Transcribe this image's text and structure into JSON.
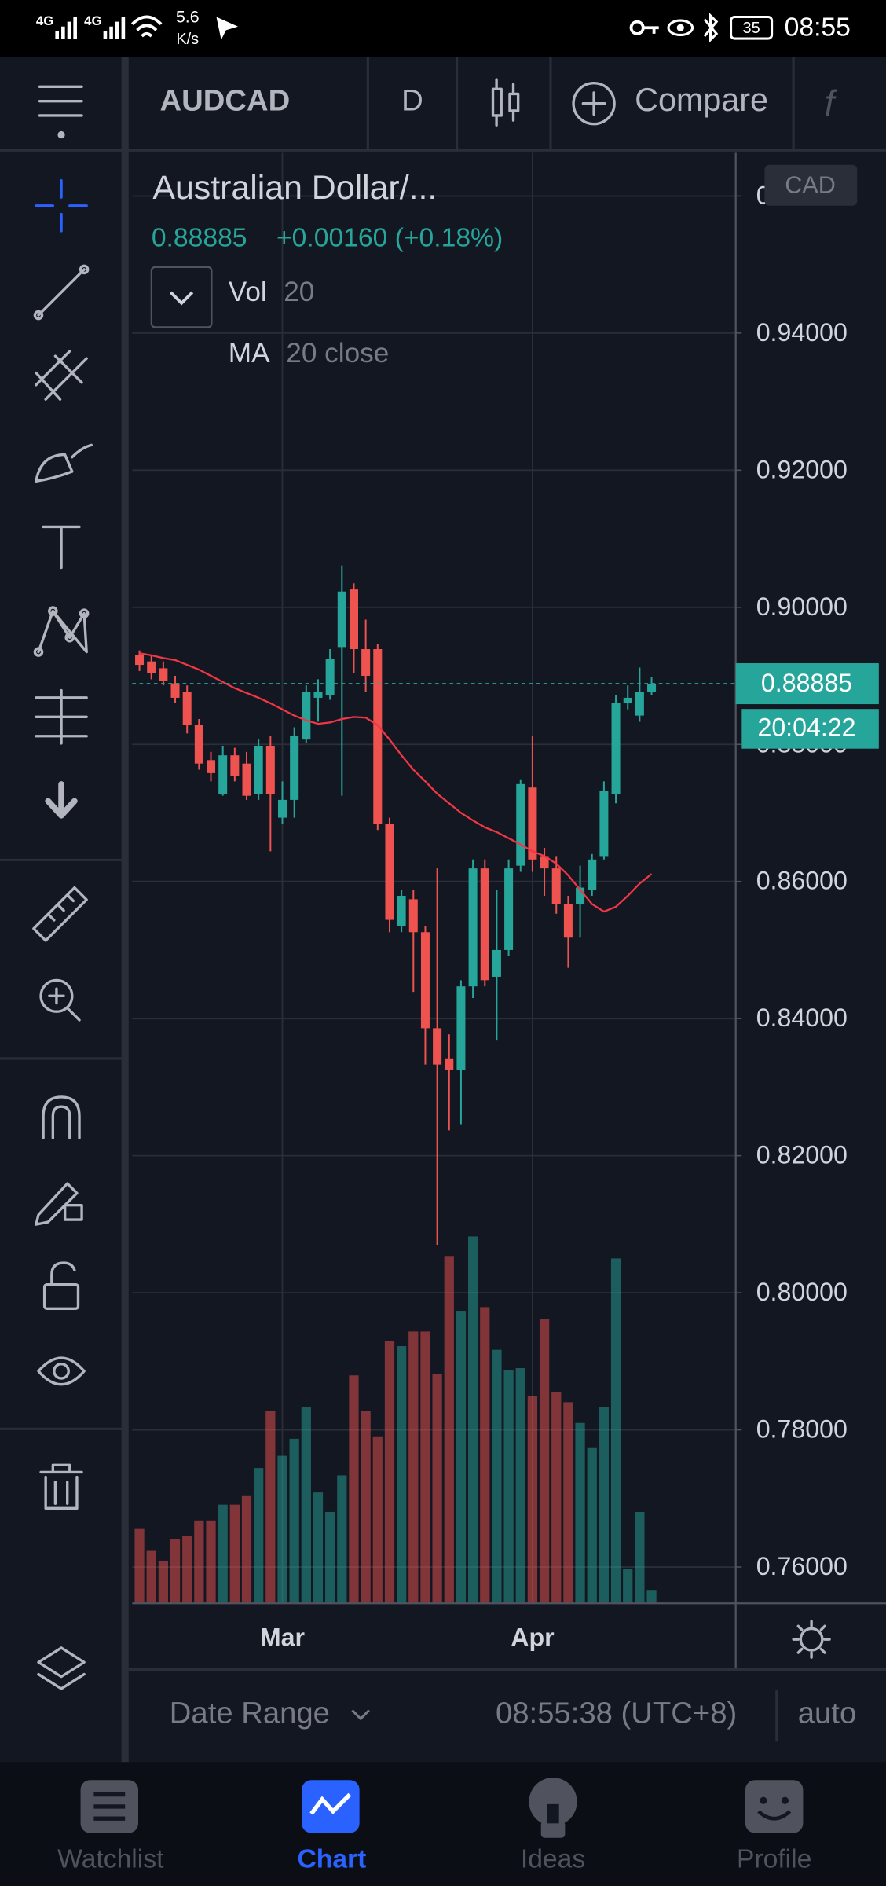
{
  "status_bar": {
    "network": "4G",
    "speed": "5.6",
    "speed_unit": "K/s",
    "battery": "35",
    "time": "08:55"
  },
  "toolbar": {
    "symbol": "AUDCAD",
    "interval": "D",
    "compare": "Compare"
  },
  "legend": {
    "name": "Australian Dollar/...",
    "price": "0.88885",
    "change": "+0.00160 (+0.18%)",
    "vol": "Vol",
    "vol_length": "20",
    "ma": "MA",
    "ma_params": "20 close"
  },
  "currency": "CAD",
  "last_price_label": "0.88885",
  "countdown": "20:04:22",
  "bottom_bar": {
    "date_range": "Date Range",
    "time": "08:55:38 (UTC+8)",
    "auto": "auto"
  },
  "tabs": [
    "Watchlist",
    "Chart",
    "Ideas",
    "Profile"
  ],
  "chart_data": {
    "type": "candlestick",
    "categories": [
      null,
      null,
      null,
      null,
      null,
      null,
      null,
      null,
      null,
      null,
      null,
      null,
      "Mar",
      null,
      null,
      null,
      null,
      null,
      null,
      null,
      null,
      null,
      null,
      null,
      null,
      null,
      null,
      null,
      null,
      null,
      null,
      null,
      null,
      "Apr",
      null,
      null,
      null,
      null,
      null,
      null,
      null,
      null,
      null,
      null
    ],
    "open": [
      0.893,
      0.8921,
      0.8911,
      0.8889,
      0.8877,
      0.8828,
      0.8777,
      0.8728,
      0.8784,
      0.8772,
      0.8728,
      0.8798,
      0.8693,
      0.8719,
      0.8807,
      0.8868,
      0.8872,
      0.8942,
      0.9026,
      0.8939,
      0.8939,
      0.8684,
      0.8535,
      0.8574,
      0.8526,
      0.8386,
      0.8342,
      0.8325,
      0.8447,
      0.8619,
      0.8461,
      0.85,
      0.8623,
      0.8737,
      0.8637,
      0.8619,
      0.8567,
      0.8567,
      0.8588,
      0.8637,
      0.8728,
      0.886,
      0.8842,
      0.8877
    ],
    "high": [
      0.8937,
      0.893,
      0.8921,
      0.89,
      0.8886,
      0.8837,
      0.8789,
      0.8798,
      0.8795,
      0.8789,
      0.8807,
      0.8812,
      0.8746,
      0.8825,
      0.8886,
      0.8895,
      0.8939,
      0.9061,
      0.9035,
      0.8982,
      0.8947,
      0.8693,
      0.8588,
      0.8588,
      0.8535,
      0.8619,
      0.8377,
      0.8456,
      0.8632,
      0.8632,
      0.8588,
      0.8632,
      0.8749,
      0.8812,
      0.8649,
      0.8637,
      0.8579,
      0.8623,
      0.864,
      0.8746,
      0.8872,
      0.8886,
      0.8912,
      0.8898
    ],
    "low": [
      0.8907,
      0.8895,
      0.8886,
      0.886,
      0.8816,
      0.8763,
      0.8746,
      0.8725,
      0.8746,
      0.8719,
      0.8719,
      0.8644,
      0.8684,
      0.8693,
      0.8802,
      0.8833,
      0.8865,
      0.8725,
      0.8904,
      0.8877,
      0.8675,
      0.8526,
      0.8526,
      0.8439,
      0.8333,
      0.807,
      0.8237,
      0.8246,
      0.843,
      0.8447,
      0.8368,
      0.8491,
      0.8614,
      0.8614,
      0.8579,
      0.8553,
      0.8474,
      0.8518,
      0.8579,
      0.8632,
      0.8714,
      0.8851,
      0.8833,
      0.8872
    ],
    "close": [
      0.8916,
      0.8904,
      0.8893,
      0.8868,
      0.8828,
      0.8772,
      0.8758,
      0.8784,
      0.8754,
      0.8725,
      0.8798,
      0.8728,
      0.8719,
      0.8812,
      0.8877,
      0.8877,
      0.8925,
      0.9023,
      0.8939,
      0.89,
      0.8684,
      0.8544,
      0.8579,
      0.8526,
      0.8386,
      0.8333,
      0.8325,
      0.8447,
      0.8619,
      0.8456,
      0.85,
      0.8619,
      0.8742,
      0.8632,
      0.8619,
      0.8567,
      0.8518,
      0.8591,
      0.8632,
      0.8732,
      0.886,
      0.8868,
      0.8877,
      0.88885
    ],
    "volume": [
      61,
      43,
      35,
      53,
      55,
      68,
      68,
      81,
      81,
      88,
      111,
      158,
      121,
      135,
      161,
      91,
      75,
      105,
      187,
      158,
      137,
      215,
      211,
      223,
      223,
      188,
      285,
      240,
      301,
      243,
      208,
      191,
      193,
      170,
      233,
      173,
      165,
      148,
      128,
      161,
      283,
      28,
      75,
      11
    ],
    "ma": [
      0.8933,
      0.893,
      0.8926,
      0.8923,
      0.8916,
      0.8909,
      0.89,
      0.8891,
      0.8882,
      0.8875,
      0.8868,
      0.886,
      0.8851,
      0.8842,
      0.8835,
      0.883,
      0.8832,
      0.8837,
      0.884,
      0.8839,
      0.8828,
      0.8807,
      0.8784,
      0.8763,
      0.8746,
      0.8728,
      0.8714,
      0.87,
      0.8689,
      0.8679,
      0.8672,
      0.8663,
      0.8654,
      0.8644,
      0.8637,
      0.8626,
      0.8609,
      0.8588,
      0.8567,
      0.8556,
      0.8563,
      0.8579,
      0.8597,
      0.8611
    ],
    "up_color": "#26a69a",
    "down_color": "#ef5350",
    "ma_color": "#f23645",
    "ylim": [
      0.7547,
      0.9663
    ],
    "yticks": [
      {
        "value": 0.76,
        "label": "0.76000"
      },
      {
        "value": 0.78,
        "label": "0.78000"
      },
      {
        "value": 0.8,
        "label": "0.80000"
      },
      {
        "value": 0.82,
        "label": "0.82000"
      },
      {
        "value": 0.84,
        "label": "0.84000"
      },
      {
        "value": 0.86,
        "label": "0.86000"
      },
      {
        "value": 0.88,
        "label": "0.88000"
      },
      {
        "value": 0.9,
        "label": "0.90000"
      },
      {
        "value": 0.92,
        "label": "0.92000"
      },
      {
        "value": 0.94,
        "label": "0.94000"
      },
      {
        "value": 0.96,
        "label": "0.96000"
      }
    ],
    "grid": true
  }
}
